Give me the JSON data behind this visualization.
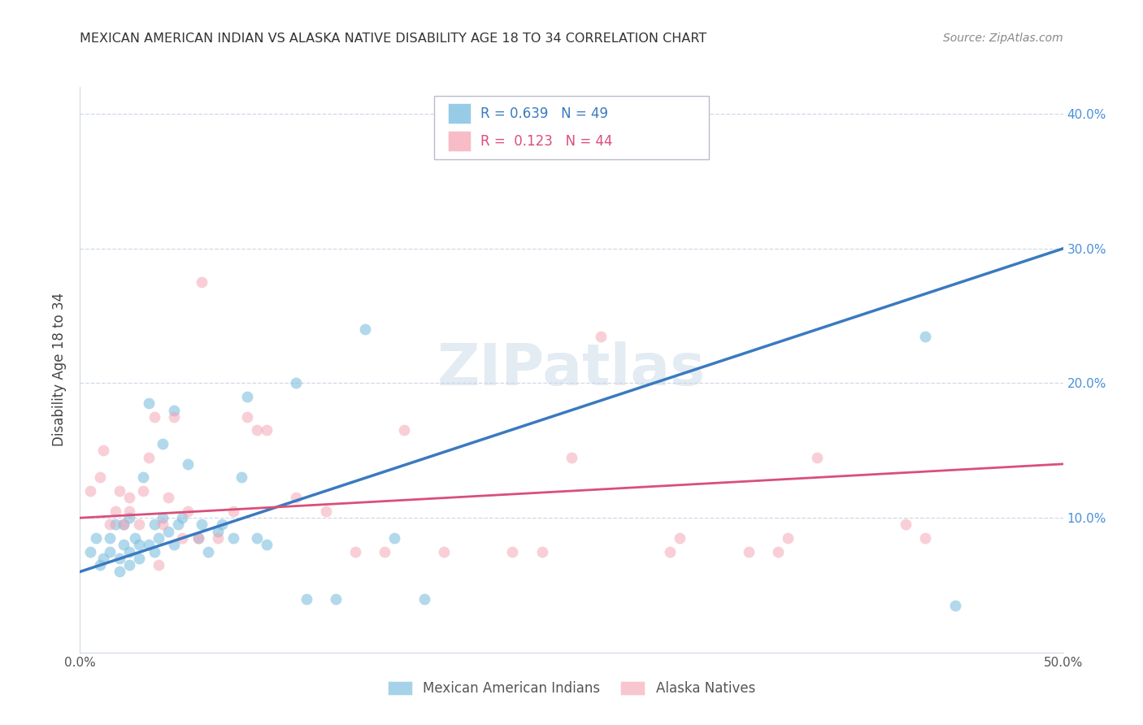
{
  "title": "MEXICAN AMERICAN INDIAN VS ALASKA NATIVE DISABILITY AGE 18 TO 34 CORRELATION CHART",
  "source": "Source: ZipAtlas.com",
  "ylabel": "Disability Age 18 to 34",
  "xlim": [
    0.0,
    0.5
  ],
  "ylim": [
    0.0,
    0.42
  ],
  "xticks": [
    0.0,
    0.1,
    0.2,
    0.3,
    0.4,
    0.5
  ],
  "yticks": [
    0.1,
    0.2,
    0.3,
    0.4
  ],
  "xtick_labels": [
    "0.0%",
    "",
    "",
    "",
    "",
    "50.0%"
  ],
  "ytick_labels": [
    "10.0%",
    "20.0%",
    "30.0%",
    "40.0%"
  ],
  "legend_labels": [
    "Mexican American Indians",
    "Alaska Natives"
  ],
  "blue_color": "#7fbfdf",
  "pink_color": "#f4a0b0",
  "blue_line_color": "#3a7abf",
  "pink_line_color": "#d94f7a",
  "title_color": "#333333",
  "source_color": "#888888",
  "tick_color": "#4a90d9",
  "grid_color": "#d0d8e8",
  "watermark_color": "#c8d8e8",
  "blue_R": 0.639,
  "blue_N": 49,
  "pink_R": 0.123,
  "pink_N": 44,
  "blue_scatter_x": [
    0.005,
    0.008,
    0.01,
    0.012,
    0.015,
    0.015,
    0.018,
    0.02,
    0.02,
    0.022,
    0.022,
    0.025,
    0.025,
    0.025,
    0.028,
    0.03,
    0.03,
    0.032,
    0.035,
    0.035,
    0.038,
    0.038,
    0.04,
    0.042,
    0.042,
    0.045,
    0.048,
    0.048,
    0.05,
    0.052,
    0.055,
    0.06,
    0.062,
    0.065,
    0.07,
    0.072,
    0.078,
    0.082,
    0.085,
    0.09,
    0.095,
    0.11,
    0.115,
    0.13,
    0.145,
    0.16,
    0.175,
    0.43,
    0.445
  ],
  "blue_scatter_y": [
    0.075,
    0.085,
    0.065,
    0.07,
    0.075,
    0.085,
    0.095,
    0.06,
    0.07,
    0.08,
    0.095,
    0.065,
    0.075,
    0.1,
    0.085,
    0.07,
    0.08,
    0.13,
    0.08,
    0.185,
    0.075,
    0.095,
    0.085,
    0.1,
    0.155,
    0.09,
    0.08,
    0.18,
    0.095,
    0.1,
    0.14,
    0.085,
    0.095,
    0.075,
    0.09,
    0.095,
    0.085,
    0.13,
    0.19,
    0.085,
    0.08,
    0.2,
    0.04,
    0.04,
    0.24,
    0.085,
    0.04,
    0.235,
    0.035
  ],
  "pink_scatter_x": [
    0.005,
    0.01,
    0.012,
    0.015,
    0.018,
    0.02,
    0.022,
    0.025,
    0.025,
    0.03,
    0.032,
    0.035,
    0.038,
    0.04,
    0.042,
    0.045,
    0.048,
    0.052,
    0.055,
    0.06,
    0.062,
    0.07,
    0.078,
    0.085,
    0.09,
    0.095,
    0.11,
    0.125,
    0.14,
    0.155,
    0.165,
    0.185,
    0.22,
    0.235,
    0.25,
    0.265,
    0.3,
    0.305,
    0.34,
    0.355,
    0.36,
    0.375,
    0.42,
    0.43
  ],
  "pink_scatter_y": [
    0.12,
    0.13,
    0.15,
    0.095,
    0.105,
    0.12,
    0.095,
    0.105,
    0.115,
    0.095,
    0.12,
    0.145,
    0.175,
    0.065,
    0.095,
    0.115,
    0.175,
    0.085,
    0.105,
    0.085,
    0.275,
    0.085,
    0.105,
    0.175,
    0.165,
    0.165,
    0.115,
    0.105,
    0.075,
    0.075,
    0.165,
    0.075,
    0.075,
    0.075,
    0.145,
    0.235,
    0.075,
    0.085,
    0.075,
    0.075,
    0.085,
    0.145,
    0.095,
    0.085
  ],
  "blue_trend_x": [
    0.0,
    0.5
  ],
  "blue_trend_y": [
    0.06,
    0.3
  ],
  "pink_trend_x": [
    0.0,
    0.5
  ],
  "pink_trend_y": [
    0.1,
    0.14
  ]
}
